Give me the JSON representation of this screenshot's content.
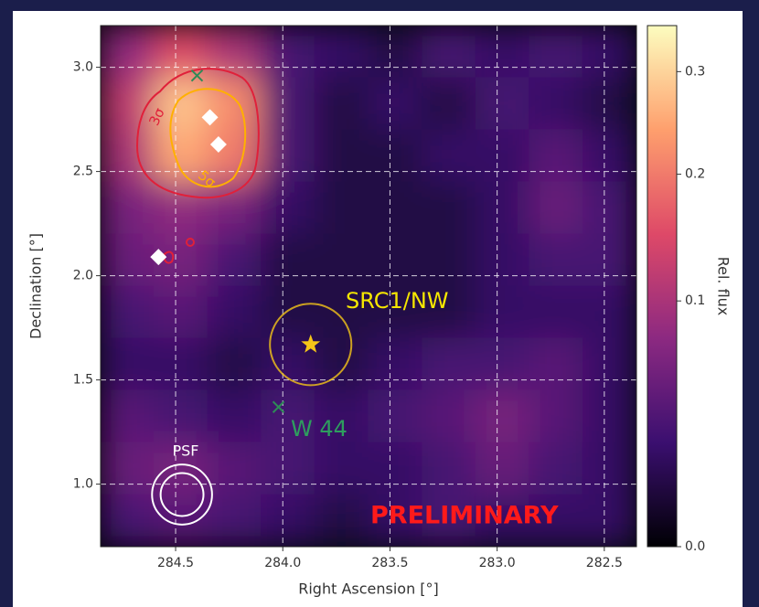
{
  "chart_data": {
    "type": "skymap",
    "xlabel": "Right Ascension [°]",
    "ylabel": "Declination [°]",
    "colorbar_label": "Rel. flux",
    "xlim": [
      284.85,
      282.35
    ],
    "ylim": [
      0.7,
      3.2
    ],
    "xticks": [
      284.5,
      {
        "value": 284,
        "label": "284.0"
      },
      283.5,
      {
        "value": 283,
        "label": "283.0"
      },
      282.5
    ],
    "yticks": [
      {
        "value": 1,
        "label": "1.0"
      },
      1.5,
      {
        "value": 2,
        "label": "2.0"
      },
      2.5,
      {
        "value": 3,
        "label": "3.0"
      }
    ],
    "grid": true,
    "x_edges": [
      284.85,
      284.6,
      284.35,
      284.1,
      283.85,
      283.6,
      283.35,
      283.1,
      282.85,
      282.6,
      282.35
    ],
    "y_edges": [
      3.2,
      2.95,
      2.7,
      2.45,
      2.2,
      1.95,
      1.7,
      1.45,
      1.2,
      0.95,
      0.7
    ],
    "flux": [
      [
        0.08,
        0.15,
        0.1,
        0.03,
        0.02,
        0.01,
        0.03,
        0.02,
        0.03,
        0.02
      ],
      [
        0.12,
        0.28,
        0.22,
        0.03,
        0.01,
        0.02,
        0.01,
        0.03,
        0.02,
        0.01
      ],
      [
        0.1,
        0.25,
        0.2,
        0.03,
        0.01,
        0.01,
        0.02,
        0.02,
        0.04,
        0.02
      ],
      [
        0.06,
        0.08,
        0.06,
        0.02,
        0.01,
        0.01,
        0.01,
        0.02,
        0.05,
        0.03
      ],
      [
        0.05,
        0.06,
        0.03,
        0.01,
        0.01,
        0.01,
        0.01,
        0.02,
        0.03,
        0.03
      ],
      [
        0.03,
        0.04,
        0.02,
        0.01,
        0.01,
        0.01,
        0.01,
        0.02,
        0.02,
        0.02
      ],
      [
        0.02,
        0.02,
        0.01,
        0.02,
        0.01,
        0.02,
        0.03,
        0.03,
        0.04,
        0.02
      ],
      [
        0.04,
        0.03,
        0.02,
        0.03,
        0.02,
        0.03,
        0.04,
        0.06,
        0.04,
        0.02
      ],
      [
        0.05,
        0.06,
        0.04,
        0.03,
        0.02,
        0.02,
        0.03,
        0.05,
        0.03,
        0.02
      ],
      [
        0.03,
        0.04,
        0.03,
        0.02,
        0.01,
        0.02,
        0.03,
        0.02,
        0.02,
        0.02
      ]
    ],
    "clim": [
      0,
      0.35
    ],
    "color_scale": "power",
    "color_power": 0.6,
    "cticks": [
      {
        "value": 0,
        "label": "0.0"
      },
      0.1,
      0.2,
      0.3
    ],
    "colormap": [
      "#000004",
      "#3b0f70",
      "#8c2981",
      "#de4968",
      "#fe9f6d",
      "#fcfdbf"
    ],
    "diamonds": {
      "color": "#ffffff",
      "ra": [
        284.34,
        284.3,
        284.58
      ],
      "dec": [
        2.76,
        2.63,
        2.09
      ]
    },
    "crosses": {
      "color": "#2e8b57",
      "ra": [
        284.4,
        284.02
      ],
      "dec": [
        2.96,
        1.37
      ]
    },
    "star": {
      "color": "#f5c518",
      "ra": 283.87,
      "dec": 1.67,
      "radius": 0.19
    },
    "psf": {
      "color": "#ffffff",
      "ra": 284.47,
      "dec": 0.95,
      "radii": [
        0.1,
        0.14
      ]
    },
    "labels": {
      "src": "SRC1/NW",
      "w44": "W 44",
      "psf": "PSF",
      "prelim": "PRELIMINARY",
      "c3": "3σ",
      "c5": "5σ"
    }
  }
}
